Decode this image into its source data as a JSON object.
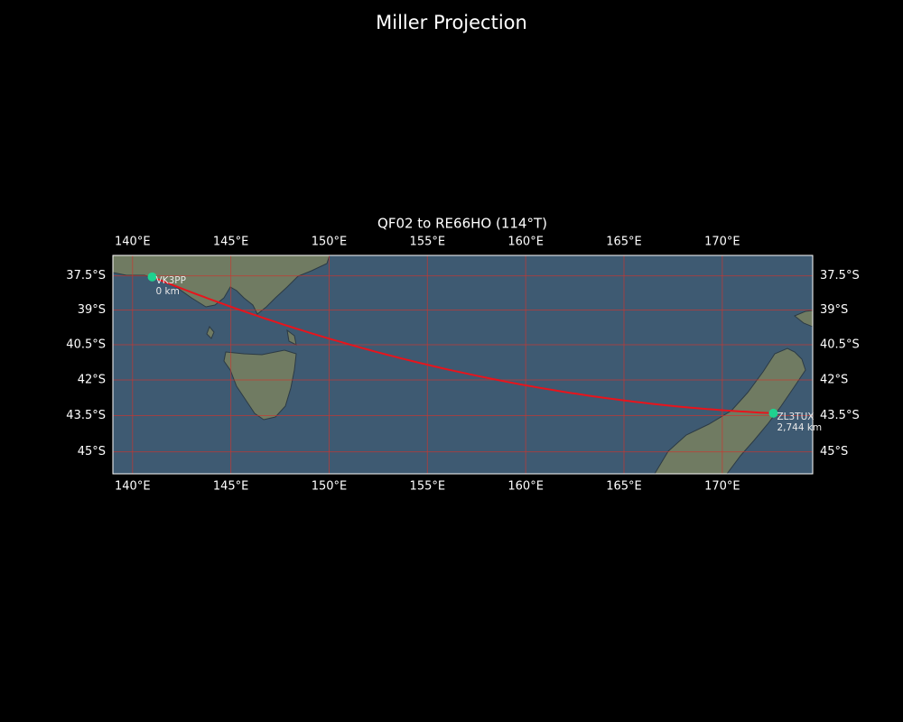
{
  "map": {
    "title": "Miller Projection",
    "subtitle": "QF02 to RE66HO (114°T)",
    "projection": "miller",
    "lonlim": [
      139,
      174.6
    ],
    "latlim": [
      -45.9,
      -36.6
    ],
    "lonticks": [
      {
        "value": 140,
        "label": "140°E"
      },
      {
        "value": 145,
        "label": "145°E"
      },
      {
        "value": 150,
        "label": "150°E"
      },
      {
        "value": 155,
        "label": "155°E"
      },
      {
        "value": 160,
        "label": "160°E"
      },
      {
        "value": 165,
        "label": "165°E"
      },
      {
        "value": 170,
        "label": "170°E"
      }
    ],
    "latticks": [
      {
        "value": -37.5,
        "label": "37.5°S"
      },
      {
        "value": -39,
        "label": "39°S"
      },
      {
        "value": -40.5,
        "label": "40.5°S"
      },
      {
        "value": -42,
        "label": "42°S"
      },
      {
        "value": -43.5,
        "label": "43.5°S"
      },
      {
        "value": -45,
        "label": "45°S"
      }
    ],
    "grid_color": "#d0342c",
    "path_color": "#e8141c",
    "point_color": "#1fd18f",
    "points": [
      {
        "name": "VK3PP",
        "distance_label": "0 km",
        "lon": 141.0,
        "lat": -37.55
      },
      {
        "name": "ZL3TUX",
        "distance_label": "2,744 km",
        "lon": 172.6,
        "lat": -43.4
      }
    ]
  }
}
